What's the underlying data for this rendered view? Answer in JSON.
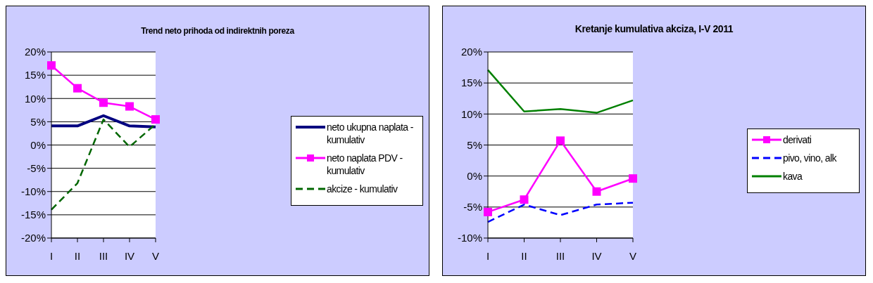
{
  "chart_data": [
    {
      "type": "line",
      "title": "Trend neto prihoda od indirektnih poreza",
      "categories": [
        "I",
        "II",
        "III",
        "IV",
        "V"
      ],
      "series": [
        {
          "name": "neto ukupna naplata - kumulativ",
          "color": "#000080",
          "values": [
            4.1,
            4.1,
            6.3,
            4.1,
            3.9
          ],
          "marker": "none",
          "line_style": "solid"
        },
        {
          "name": "neto naplata PDV - kumulativ",
          "color": "#ff00ff",
          "values": [
            17.1,
            12.2,
            9.1,
            8.3,
            5.5
          ],
          "marker": "square",
          "line_style": "solid"
        },
        {
          "name": "akcize - kumulativ",
          "color": "#006600",
          "values": [
            -13.9,
            -8.2,
            5.5,
            -0.4,
            4.5
          ],
          "marker": "none",
          "line_style": "dashed"
        }
      ],
      "ylim": [
        -20,
        20
      ],
      "yticks": [
        {
          "value": -20,
          "label": "-20%"
        },
        {
          "value": -15,
          "label": "-15%"
        },
        {
          "value": -10,
          "label": "-10%"
        },
        {
          "value": -5,
          "label": "-5%"
        },
        {
          "value": 0,
          "label": "0%"
        },
        {
          "value": 5,
          "label": "5%"
        },
        {
          "value": 10,
          "label": "10%"
        },
        {
          "value": 15,
          "label": "15%"
        },
        {
          "value": 20,
          "label": "20%"
        }
      ],
      "grid": "y",
      "legend": "right"
    },
    {
      "type": "line",
      "title": "Kretanje kumulativa akciza, I-V 2011",
      "categories": [
        "I",
        "II",
        "III",
        "IV",
        "V"
      ],
      "series": [
        {
          "name": "derivati",
          "color": "#ff00ff",
          "values": [
            -5.8,
            -3.8,
            5.7,
            -2.5,
            -0.4
          ],
          "marker": "square",
          "line_style": "solid"
        },
        {
          "name": "pivo, vino, alk",
          "color": "#0000ff",
          "values": [
            -7.4,
            -4.6,
            -6.3,
            -4.6,
            -4.3
          ],
          "marker": "none",
          "line_style": "dashed"
        },
        {
          "name": "kava",
          "color": "#008000",
          "values": [
            17.1,
            10.4,
            10.8,
            10.2,
            12.2
          ],
          "marker": "none",
          "line_style": "solid"
        }
      ],
      "ylim": [
        -10,
        20
      ],
      "yticks": [
        {
          "value": -10,
          "label": "-10%"
        },
        {
          "value": -5,
          "label": "-5%"
        },
        {
          "value": 0,
          "label": "0%"
        },
        {
          "value": 5,
          "label": "5%"
        },
        {
          "value": 10,
          "label": "10%"
        },
        {
          "value": 15,
          "label": "15%"
        },
        {
          "value": 20,
          "label": "20%"
        }
      ],
      "grid": "y",
      "legend": "right"
    }
  ]
}
